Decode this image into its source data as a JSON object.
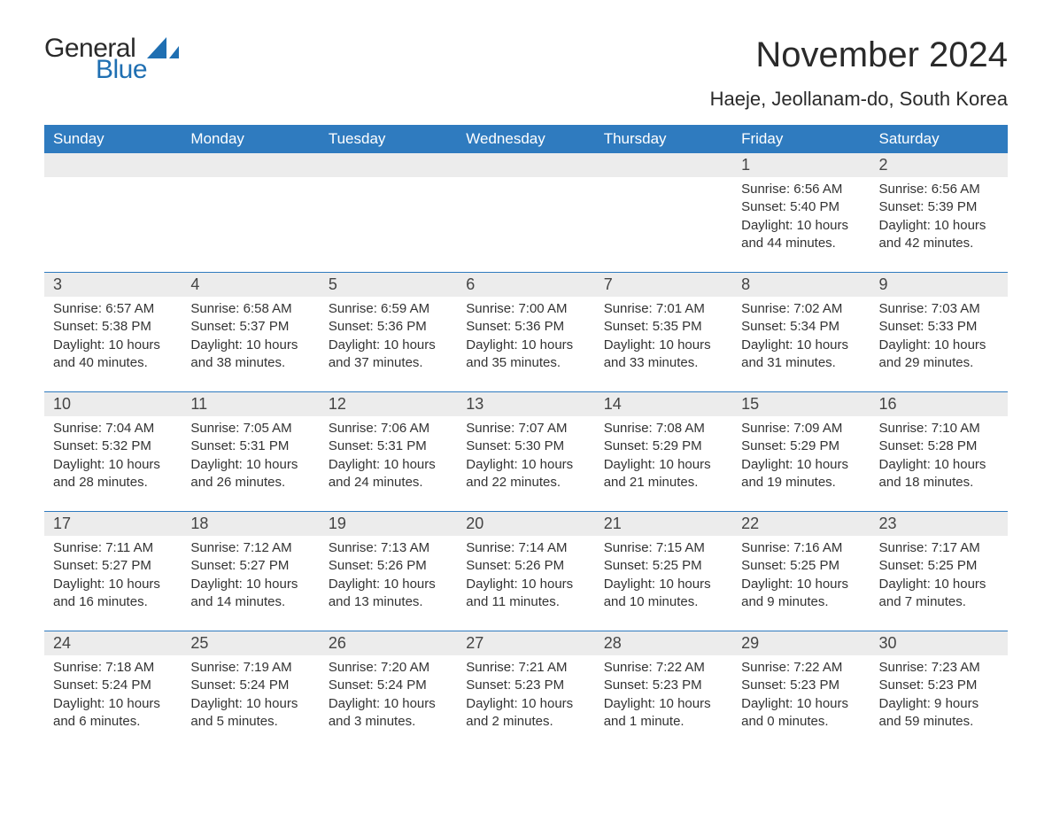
{
  "logo": {
    "general": "General",
    "blue": "Blue",
    "icon_color": "#1f6fb2"
  },
  "title": "November 2024",
  "location": "Haeje, Jeollanam-do, South Korea",
  "colors": {
    "header_bg": "#2f7bbf",
    "header_text": "#ffffff",
    "daynum_bg": "#ececec",
    "text": "#333333",
    "rule": "#2f7bbf"
  },
  "weekdays": [
    "Sunday",
    "Monday",
    "Tuesday",
    "Wednesday",
    "Thursday",
    "Friday",
    "Saturday"
  ],
  "weeks": [
    [
      null,
      null,
      null,
      null,
      null,
      {
        "num": "1",
        "sunrise": "Sunrise: 6:56 AM",
        "sunset": "Sunset: 5:40 PM",
        "daylight": "Daylight: 10 hours and 44 minutes."
      },
      {
        "num": "2",
        "sunrise": "Sunrise: 6:56 AM",
        "sunset": "Sunset: 5:39 PM",
        "daylight": "Daylight: 10 hours and 42 minutes."
      }
    ],
    [
      {
        "num": "3",
        "sunrise": "Sunrise: 6:57 AM",
        "sunset": "Sunset: 5:38 PM",
        "daylight": "Daylight: 10 hours and 40 minutes."
      },
      {
        "num": "4",
        "sunrise": "Sunrise: 6:58 AM",
        "sunset": "Sunset: 5:37 PM",
        "daylight": "Daylight: 10 hours and 38 minutes."
      },
      {
        "num": "5",
        "sunrise": "Sunrise: 6:59 AM",
        "sunset": "Sunset: 5:36 PM",
        "daylight": "Daylight: 10 hours and 37 minutes."
      },
      {
        "num": "6",
        "sunrise": "Sunrise: 7:00 AM",
        "sunset": "Sunset: 5:36 PM",
        "daylight": "Daylight: 10 hours and 35 minutes."
      },
      {
        "num": "7",
        "sunrise": "Sunrise: 7:01 AM",
        "sunset": "Sunset: 5:35 PM",
        "daylight": "Daylight: 10 hours and 33 minutes."
      },
      {
        "num": "8",
        "sunrise": "Sunrise: 7:02 AM",
        "sunset": "Sunset: 5:34 PM",
        "daylight": "Daylight: 10 hours and 31 minutes."
      },
      {
        "num": "9",
        "sunrise": "Sunrise: 7:03 AM",
        "sunset": "Sunset: 5:33 PM",
        "daylight": "Daylight: 10 hours and 29 minutes."
      }
    ],
    [
      {
        "num": "10",
        "sunrise": "Sunrise: 7:04 AM",
        "sunset": "Sunset: 5:32 PM",
        "daylight": "Daylight: 10 hours and 28 minutes."
      },
      {
        "num": "11",
        "sunrise": "Sunrise: 7:05 AM",
        "sunset": "Sunset: 5:31 PM",
        "daylight": "Daylight: 10 hours and 26 minutes."
      },
      {
        "num": "12",
        "sunrise": "Sunrise: 7:06 AM",
        "sunset": "Sunset: 5:31 PM",
        "daylight": "Daylight: 10 hours and 24 minutes."
      },
      {
        "num": "13",
        "sunrise": "Sunrise: 7:07 AM",
        "sunset": "Sunset: 5:30 PM",
        "daylight": "Daylight: 10 hours and 22 minutes."
      },
      {
        "num": "14",
        "sunrise": "Sunrise: 7:08 AM",
        "sunset": "Sunset: 5:29 PM",
        "daylight": "Daylight: 10 hours and 21 minutes."
      },
      {
        "num": "15",
        "sunrise": "Sunrise: 7:09 AM",
        "sunset": "Sunset: 5:29 PM",
        "daylight": "Daylight: 10 hours and 19 minutes."
      },
      {
        "num": "16",
        "sunrise": "Sunrise: 7:10 AM",
        "sunset": "Sunset: 5:28 PM",
        "daylight": "Daylight: 10 hours and 18 minutes."
      }
    ],
    [
      {
        "num": "17",
        "sunrise": "Sunrise: 7:11 AM",
        "sunset": "Sunset: 5:27 PM",
        "daylight": "Daylight: 10 hours and 16 minutes."
      },
      {
        "num": "18",
        "sunrise": "Sunrise: 7:12 AM",
        "sunset": "Sunset: 5:27 PM",
        "daylight": "Daylight: 10 hours and 14 minutes."
      },
      {
        "num": "19",
        "sunrise": "Sunrise: 7:13 AM",
        "sunset": "Sunset: 5:26 PM",
        "daylight": "Daylight: 10 hours and 13 minutes."
      },
      {
        "num": "20",
        "sunrise": "Sunrise: 7:14 AM",
        "sunset": "Sunset: 5:26 PM",
        "daylight": "Daylight: 10 hours and 11 minutes."
      },
      {
        "num": "21",
        "sunrise": "Sunrise: 7:15 AM",
        "sunset": "Sunset: 5:25 PM",
        "daylight": "Daylight: 10 hours and 10 minutes."
      },
      {
        "num": "22",
        "sunrise": "Sunrise: 7:16 AM",
        "sunset": "Sunset: 5:25 PM",
        "daylight": "Daylight: 10 hours and 9 minutes."
      },
      {
        "num": "23",
        "sunrise": "Sunrise: 7:17 AM",
        "sunset": "Sunset: 5:25 PM",
        "daylight": "Daylight: 10 hours and 7 minutes."
      }
    ],
    [
      {
        "num": "24",
        "sunrise": "Sunrise: 7:18 AM",
        "sunset": "Sunset: 5:24 PM",
        "daylight": "Daylight: 10 hours and 6 minutes."
      },
      {
        "num": "25",
        "sunrise": "Sunrise: 7:19 AM",
        "sunset": "Sunset: 5:24 PM",
        "daylight": "Daylight: 10 hours and 5 minutes."
      },
      {
        "num": "26",
        "sunrise": "Sunrise: 7:20 AM",
        "sunset": "Sunset: 5:24 PM",
        "daylight": "Daylight: 10 hours and 3 minutes."
      },
      {
        "num": "27",
        "sunrise": "Sunrise: 7:21 AM",
        "sunset": "Sunset: 5:23 PM",
        "daylight": "Daylight: 10 hours and 2 minutes."
      },
      {
        "num": "28",
        "sunrise": "Sunrise: 7:22 AM",
        "sunset": "Sunset: 5:23 PM",
        "daylight": "Daylight: 10 hours and 1 minute."
      },
      {
        "num": "29",
        "sunrise": "Sunrise: 7:22 AM",
        "sunset": "Sunset: 5:23 PM",
        "daylight": "Daylight: 10 hours and 0 minutes."
      },
      {
        "num": "30",
        "sunrise": "Sunrise: 7:23 AM",
        "sunset": "Sunset: 5:23 PM",
        "daylight": "Daylight: 9 hours and 59 minutes."
      }
    ]
  ]
}
